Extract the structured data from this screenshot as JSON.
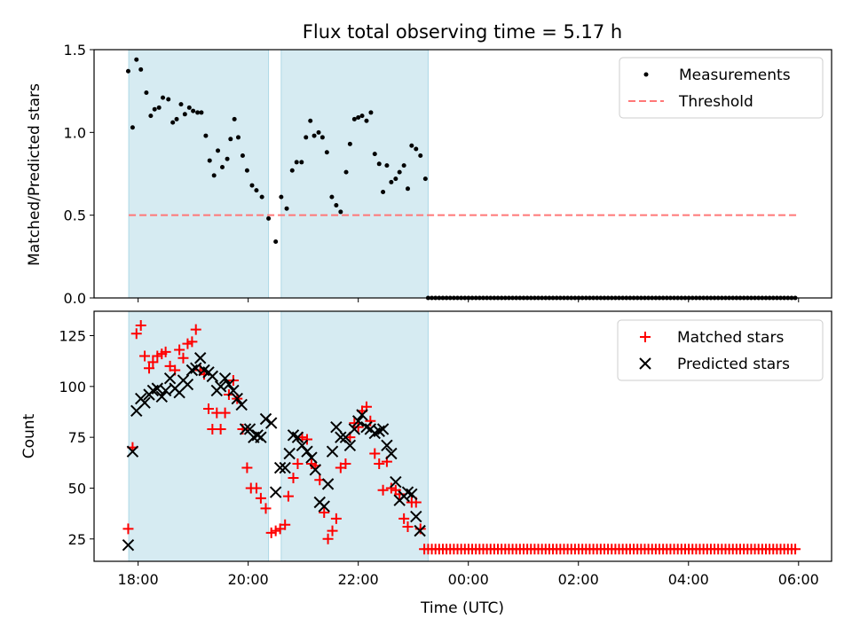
{
  "chart_data": [
    {
      "type": "scatter",
      "title": "Flux total observing time = 5.17 h",
      "ylabel": "Matched/Predicted stars",
      "xlim_hours": [
        17.2,
        30.6
      ],
      "ylim": [
        0,
        1.5
      ],
      "yticks": [
        "0.0",
        "0.5",
        "1.0",
        "1.5"
      ],
      "shaded_intervals_hours": [
        [
          17.83,
          20.37
        ],
        [
          20.6,
          23.27
        ]
      ],
      "threshold": 0.5,
      "threshold_range_hours": [
        17.83,
        30.0
      ],
      "legend": [
        "Measurements",
        "Threshold"
      ],
      "legend_position": "upper right",
      "measurements": [
        [
          17.82,
          1.37
        ],
        [
          17.9,
          1.03
        ],
        [
          17.97,
          1.44
        ],
        [
          18.05,
          1.38
        ],
        [
          18.15,
          1.24
        ],
        [
          18.23,
          1.1
        ],
        [
          18.3,
          1.14
        ],
        [
          18.38,
          1.15
        ],
        [
          18.45,
          1.21
        ],
        [
          18.55,
          1.2
        ],
        [
          18.63,
          1.06
        ],
        [
          18.7,
          1.08
        ],
        [
          18.78,
          1.17
        ],
        [
          18.85,
          1.11
        ],
        [
          18.93,
          1.15
        ],
        [
          19.0,
          1.13
        ],
        [
          19.08,
          1.12
        ],
        [
          19.15,
          1.12
        ],
        [
          19.23,
          0.98
        ],
        [
          19.3,
          0.83
        ],
        [
          19.38,
          0.74
        ],
        [
          19.45,
          0.89
        ],
        [
          19.53,
          0.79
        ],
        [
          19.62,
          0.84
        ],
        [
          19.68,
          0.96
        ],
        [
          19.75,
          1.08
        ],
        [
          19.82,
          0.97
        ],
        [
          19.9,
          0.86
        ],
        [
          19.98,
          0.77
        ],
        [
          20.07,
          0.68
        ],
        [
          20.15,
          0.65
        ],
        [
          20.25,
          0.61
        ],
        [
          20.37,
          0.48
        ],
        [
          20.5,
          0.34
        ],
        [
          20.6,
          0.61
        ],
        [
          20.7,
          0.54
        ],
        [
          20.8,
          0.77
        ],
        [
          20.88,
          0.82
        ],
        [
          20.97,
          0.82
        ],
        [
          21.05,
          0.97
        ],
        [
          21.13,
          1.07
        ],
        [
          21.2,
          0.98
        ],
        [
          21.28,
          1.0
        ],
        [
          21.35,
          0.97
        ],
        [
          21.43,
          0.88
        ],
        [
          21.52,
          0.61
        ],
        [
          21.6,
          0.56
        ],
        [
          21.68,
          0.52
        ],
        [
          21.78,
          0.76
        ],
        [
          21.85,
          0.93
        ],
        [
          21.93,
          1.08
        ],
        [
          22.0,
          1.09
        ],
        [
          22.07,
          1.1
        ],
        [
          22.15,
          1.07
        ],
        [
          22.23,
          1.12
        ],
        [
          22.3,
          0.87
        ],
        [
          22.38,
          0.81
        ],
        [
          22.45,
          0.64
        ],
        [
          22.52,
          0.8
        ],
        [
          22.6,
          0.7
        ],
        [
          22.68,
          0.72
        ],
        [
          22.75,
          0.76
        ],
        [
          22.83,
          0.8
        ],
        [
          22.9,
          0.66
        ],
        [
          22.97,
          0.92
        ],
        [
          23.05,
          0.9
        ],
        [
          23.13,
          0.86
        ],
        [
          23.22,
          0.72
        ]
      ],
      "zero_measurements_hours_range": [
        23.27,
        30.0
      ],
      "zero_measurements_step_hours": 0.0667
    },
    {
      "type": "scatter",
      "ylabel": "Count",
      "xlabel": "Time (UTC)",
      "xlim_hours": [
        17.2,
        30.6
      ],
      "ylim": [
        14,
        137
      ],
      "yticks": [
        "25",
        "50",
        "75",
        "100",
        "125"
      ],
      "xticks": [
        "18:00",
        "20:00",
        "22:00",
        "00:00",
        "02:00",
        "04:00",
        "06:00"
      ],
      "shaded_intervals_hours": [
        [
          17.83,
          20.37
        ],
        [
          20.6,
          23.27
        ]
      ],
      "legend": [
        "Matched stars",
        "Predicted stars"
      ],
      "legend_position": "upper right",
      "matched_color": "#ff0000",
      "predicted_color": "#000000",
      "shade_color": "#add8e6",
      "threshold_color": "#ff7777",
      "matched": [
        [
          17.82,
          30
        ],
        [
          17.9,
          70
        ],
        [
          17.97,
          126
        ],
        [
          18.05,
          130
        ],
        [
          18.12,
          115
        ],
        [
          18.2,
          109
        ],
        [
          18.27,
          112
        ],
        [
          18.35,
          115
        ],
        [
          18.43,
          116
        ],
        [
          18.5,
          117
        ],
        [
          18.58,
          110
        ],
        [
          18.67,
          108
        ],
        [
          18.75,
          118
        ],
        [
          18.82,
          114
        ],
        [
          18.9,
          121
        ],
        [
          18.98,
          122
        ],
        [
          19.05,
          128
        ],
        [
          19.13,
          108
        ],
        [
          19.2,
          106
        ],
        [
          19.28,
          89
        ],
        [
          19.35,
          79
        ],
        [
          19.43,
          87
        ],
        [
          19.5,
          79
        ],
        [
          19.58,
          87
        ],
        [
          19.65,
          96
        ],
        [
          19.73,
          103
        ],
        [
          19.8,
          94
        ],
        [
          19.9,
          79
        ],
        [
          19.98,
          60
        ],
        [
          20.05,
          50
        ],
        [
          20.15,
          50
        ],
        [
          20.23,
          45
        ],
        [
          20.32,
          40
        ],
        [
          20.42,
          28
        ],
        [
          20.5,
          29
        ],
        [
          20.58,
          30
        ],
        [
          20.67,
          32
        ],
        [
          20.73,
          46
        ],
        [
          20.82,
          55
        ],
        [
          20.9,
          62
        ],
        [
          20.98,
          75
        ],
        [
          21.07,
          74
        ],
        [
          21.15,
          62
        ],
        [
          21.22,
          61
        ],
        [
          21.3,
          54
        ],
        [
          21.38,
          38
        ],
        [
          21.45,
          25
        ],
        [
          21.53,
          29
        ],
        [
          21.6,
          35
        ],
        [
          21.68,
          60
        ],
        [
          21.77,
          62
        ],
        [
          21.85,
          75
        ],
        [
          21.93,
          82
        ],
        [
          22.0,
          80
        ],
        [
          22.07,
          88
        ],
        [
          22.15,
          90
        ],
        [
          22.22,
          83
        ],
        [
          22.3,
          67
        ],
        [
          22.38,
          62
        ],
        [
          22.45,
          49
        ],
        [
          22.52,
          63
        ],
        [
          22.6,
          50
        ],
        [
          22.68,
          49
        ],
        [
          22.75,
          47
        ],
        [
          22.83,
          35
        ],
        [
          22.9,
          31
        ],
        [
          22.97,
          43
        ],
        [
          23.05,
          43
        ],
        [
          23.13,
          30
        ],
        [
          23.2,
          20
        ]
      ],
      "predicted": [
        [
          17.82,
          22
        ],
        [
          17.9,
          68
        ],
        [
          17.97,
          88
        ],
        [
          18.05,
          94
        ],
        [
          18.12,
          92
        ],
        [
          18.2,
          96
        ],
        [
          18.27,
          98
        ],
        [
          18.35,
          99
        ],
        [
          18.43,
          95
        ],
        [
          18.5,
          98
        ],
        [
          18.58,
          104
        ],
        [
          18.67,
          99
        ],
        [
          18.75,
          97
        ],
        [
          18.82,
          103
        ],
        [
          18.9,
          101
        ],
        [
          18.98,
          108
        ],
        [
          19.05,
          109
        ],
        [
          19.13,
          114
        ],
        [
          19.2,
          108
        ],
        [
          19.28,
          107
        ],
        [
          19.35,
          105
        ],
        [
          19.43,
          98
        ],
        [
          19.5,
          100
        ],
        [
          19.58,
          104
        ],
        [
          19.65,
          101
        ],
        [
          19.73,
          98
        ],
        [
          19.8,
          94
        ],
        [
          19.88,
          91
        ],
        [
          19.95,
          79
        ],
        [
          20.03,
          79
        ],
        [
          20.1,
          75
        ],
        [
          20.17,
          76
        ],
        [
          20.23,
          75
        ],
        [
          20.32,
          84
        ],
        [
          20.42,
          82
        ],
        [
          20.5,
          48
        ],
        [
          20.58,
          60
        ],
        [
          20.67,
          60
        ],
        [
          20.75,
          67
        ],
        [
          20.82,
          76
        ],
        [
          20.9,
          75
        ],
        [
          20.98,
          71
        ],
        [
          21.07,
          68
        ],
        [
          21.15,
          65
        ],
        [
          21.22,
          59
        ],
        [
          21.3,
          43
        ],
        [
          21.38,
          41
        ],
        [
          21.45,
          52
        ],
        [
          21.53,
          68
        ],
        [
          21.6,
          80
        ],
        [
          21.68,
          75
        ],
        [
          21.77,
          75
        ],
        [
          21.85,
          71
        ],
        [
          21.93,
          79
        ],
        [
          22.0,
          83
        ],
        [
          22.07,
          86
        ],
        [
          22.15,
          80
        ],
        [
          22.22,
          79
        ],
        [
          22.3,
          77
        ],
        [
          22.38,
          78
        ],
        [
          22.45,
          79
        ],
        [
          22.52,
          71
        ],
        [
          22.6,
          67
        ],
        [
          22.68,
          53
        ],
        [
          22.75,
          44
        ],
        [
          22.83,
          46
        ],
        [
          22.9,
          48
        ],
        [
          22.97,
          47
        ],
        [
          23.05,
          36
        ],
        [
          23.12,
          29
        ]
      ],
      "baseline_matched_count": 20,
      "baseline_range_hours": [
        23.27,
        30.0
      ],
      "baseline_step_hours": 0.0667
    }
  ]
}
